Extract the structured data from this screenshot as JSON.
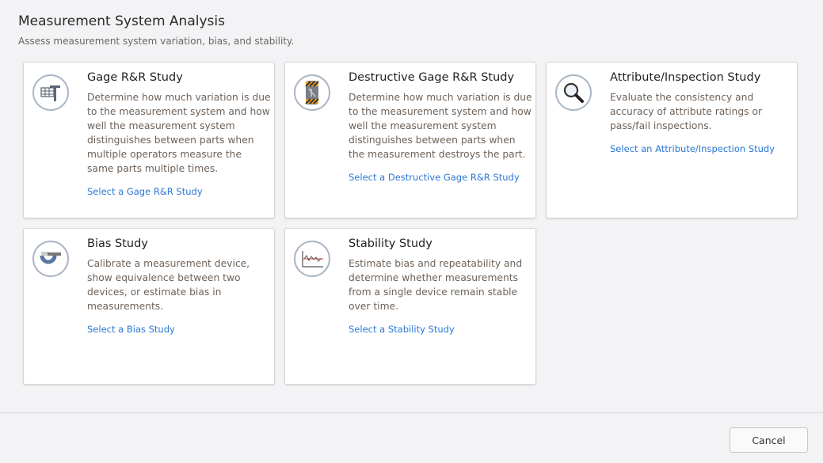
{
  "header": {
    "title": "Measurement System Analysis",
    "subtitle": "Assess measurement system variation, bias, and stability."
  },
  "cards": [
    {
      "title": "Gage R&R Study",
      "description": "Determine how much variation is due to the measurement system and how well the measurement system distinguishes between parts when multiple operators measure the same parts multiple times.",
      "link": "Select a Gage R&R Study",
      "icon": "gage-caliper-table-icon"
    },
    {
      "title": "Destructive Gage R&R Study",
      "description": "Determine how much variation is due to the measurement system and how well the measurement system distinguishes between parts when the measurement destroys the part.",
      "link": "Select a Destructive Gage R&R Study",
      "icon": "destructive-test-icon"
    },
    {
      "title": "Attribute/Inspection Study",
      "description": "Evaluate the consistency and accuracy of attribute ratings or pass/fail inspections.",
      "link": "Select an Attribute/Inspection Study",
      "icon": "magnifier-icon"
    },
    {
      "title": "Bias Study",
      "description": "Calibrate a measurement device, show equivalence between two devices, or estimate bias in measurements.",
      "link": "Select a Bias Study",
      "icon": "micrometer-icon"
    },
    {
      "title": "Stability Study",
      "description": "Estimate bias and repeatability and determine whether measurements from a single device remain stable over time.",
      "link": "Select a Stability Study",
      "icon": "control-chart-icon"
    }
  ],
  "footer": {
    "cancel_label": "Cancel"
  },
  "colors": {
    "link": "#2a78d6",
    "background": "#f3f3f5",
    "icon_ring": "#aab6c4"
  }
}
